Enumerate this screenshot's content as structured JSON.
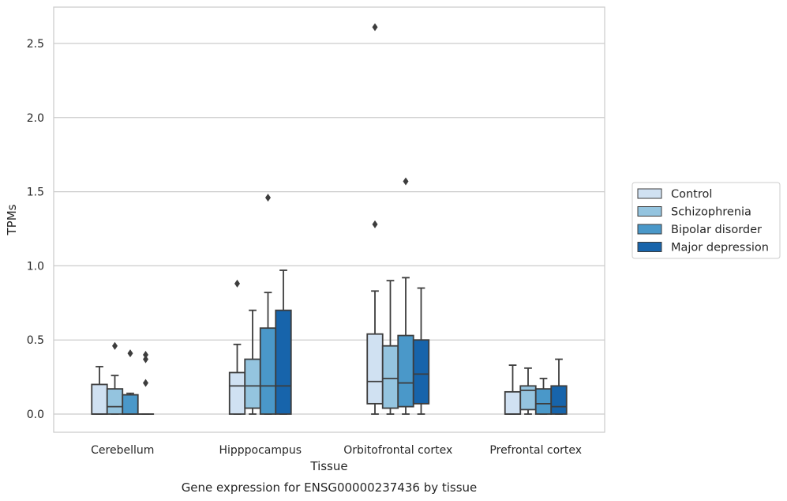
{
  "chart_data": {
    "type": "box",
    "title": "Gene expression for ENSG00000237436 by tissue",
    "xlabel": "Tissue",
    "ylabel": "TPMs",
    "ylim": [
      -0.125,
      2.75
    ],
    "yticks": [
      0.0,
      0.5,
      1.0,
      1.5,
      2.0,
      2.5
    ],
    "ytick_labels": [
      "0.0",
      "0.5",
      "1.0",
      "1.5",
      "2.0",
      "2.5"
    ],
    "grid": "horizontal",
    "legend_position": "right",
    "categories": [
      "Cerebellum",
      "Hipppocampus",
      "Orbitofrontal cortex",
      "Prefrontal cortex"
    ],
    "series": [
      {
        "name": "Control",
        "color": "#d0e1f2",
        "boxes": [
          {
            "whisker_low": 0.0,
            "q1": 0.0,
            "median": 0.0,
            "q3": 0.2,
            "whisker_high": 0.32,
            "outliers": []
          },
          {
            "whisker_low": 0.0,
            "q1": 0.0,
            "median": 0.19,
            "q3": 0.28,
            "whisker_high": 0.47,
            "outliers": [
              0.88
            ]
          },
          {
            "whisker_low": 0.0,
            "q1": 0.07,
            "median": 0.22,
            "q3": 0.54,
            "whisker_high": 0.83,
            "outliers": [
              1.28,
              2.61
            ]
          },
          {
            "whisker_low": 0.0,
            "q1": 0.0,
            "median": 0.0,
            "q3": 0.15,
            "whisker_high": 0.33,
            "outliers": []
          }
        ]
      },
      {
        "name": "Schizophrenia",
        "color": "#94c4df",
        "boxes": [
          {
            "whisker_low": 0.0,
            "q1": 0.0,
            "median": 0.05,
            "q3": 0.17,
            "whisker_high": 0.26,
            "outliers": [
              0.46
            ]
          },
          {
            "whisker_low": 0.0,
            "q1": 0.04,
            "median": 0.19,
            "q3": 0.37,
            "whisker_high": 0.7,
            "outliers": []
          },
          {
            "whisker_low": 0.0,
            "q1": 0.04,
            "median": 0.24,
            "q3": 0.46,
            "whisker_high": 0.9,
            "outliers": []
          },
          {
            "whisker_low": 0.0,
            "q1": 0.03,
            "median": 0.16,
            "q3": 0.19,
            "whisker_high": 0.31,
            "outliers": []
          }
        ]
      },
      {
        "name": "Bipolar disorder",
        "color": "#4a98c9",
        "boxes": [
          {
            "whisker_low": 0.0,
            "q1": 0.0,
            "median": 0.0,
            "q3": 0.13,
            "whisker_high": 0.14,
            "outliers": [
              0.41
            ]
          },
          {
            "whisker_low": 0.0,
            "q1": 0.0,
            "median": 0.19,
            "q3": 0.58,
            "whisker_high": 0.82,
            "outliers": [
              1.46
            ]
          },
          {
            "whisker_low": 0.0,
            "q1": 0.05,
            "median": 0.21,
            "q3": 0.53,
            "whisker_high": 0.92,
            "outliers": [
              1.57
            ]
          },
          {
            "whisker_low": 0.0,
            "q1": 0.0,
            "median": 0.07,
            "q3": 0.17,
            "whisker_high": 0.24,
            "outliers": []
          }
        ]
      },
      {
        "name": "Major depression",
        "color": "#1764ab",
        "boxes": [
          {
            "whisker_low": 0.0,
            "q1": 0.0,
            "median": 0.0,
            "q3": 0.0,
            "whisker_high": 0.0,
            "outliers": [
              0.21,
              0.37,
              0.4
            ]
          },
          {
            "whisker_low": 0.0,
            "q1": 0.0,
            "median": 0.19,
            "q3": 0.7,
            "whisker_high": 0.97,
            "outliers": []
          },
          {
            "whisker_low": 0.0,
            "q1": 0.07,
            "median": 0.27,
            "q3": 0.5,
            "whisker_high": 0.85,
            "outliers": []
          },
          {
            "whisker_low": 0.0,
            "q1": 0.0,
            "median": 0.05,
            "q3": 0.19,
            "whisker_high": 0.37,
            "outliers": []
          }
        ]
      }
    ]
  }
}
